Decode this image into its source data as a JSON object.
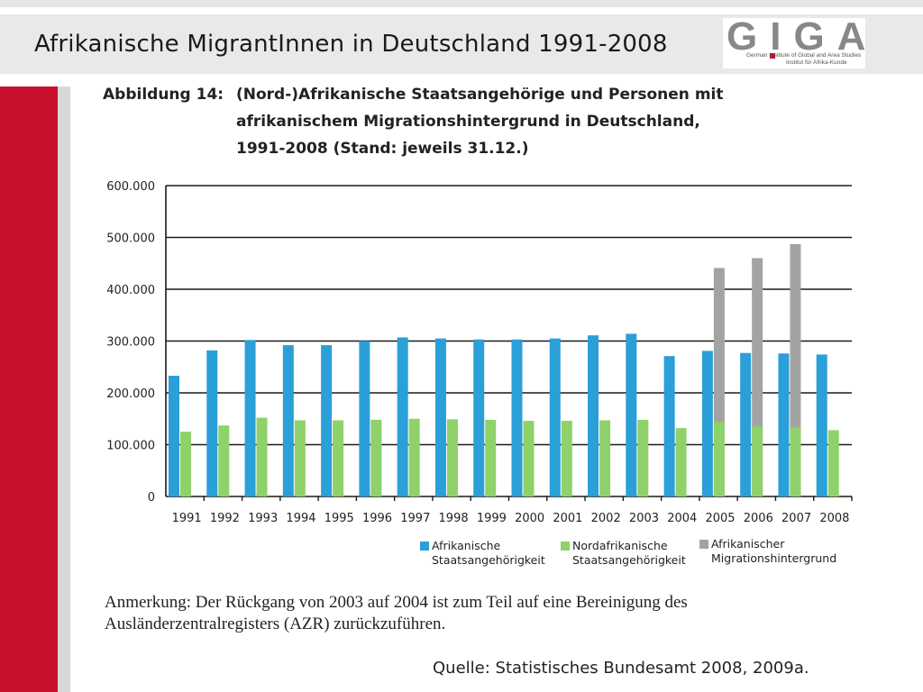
{
  "slide": {
    "title": "Afrikanische MigrantInnen in Deutschland 1991-2008"
  },
  "logo": {
    "letters": "GIGA",
    "line1": "German Institute of Global and Area Studies",
    "line2": "Institut für Afrika-Kunde",
    "accent_color": "#c8102e"
  },
  "figure": {
    "label": "Abbildung 14:",
    "title_lines": [
      "(Nord-)Afrikanische Staatsangehörige und Personen mit",
      "afrikanischem Migrationshintergrund in Deutschland,",
      "1991-2008 (Stand: jeweils 31.12.)"
    ],
    "note_lines": [
      "Anmerkung: Der Rückgang von 2003 auf 2004 ist zum Teil auf eine Bereinigung des",
      "Ausländerzentralregisters (AZR) zurückzuführen."
    ],
    "source": "Quelle: Statistisches Bundesamt 2008, 2009a."
  },
  "chart_data": {
    "type": "bar",
    "title": "",
    "xlabel": "",
    "ylabel": "",
    "categories": [
      "1991",
      "1992",
      "1993",
      "1994",
      "1995",
      "1996",
      "1997",
      "1998",
      "1999",
      "2000",
      "2001",
      "2002",
      "2003",
      "2004",
      "2005",
      "2006",
      "2007",
      "2008"
    ],
    "ylim": [
      0,
      600000
    ],
    "yticks": [
      0,
      100000,
      200000,
      300000,
      400000,
      500000,
      600000
    ],
    "ytick_labels": [
      "0",
      "100.000",
      "200.000",
      "300.000",
      "400.000",
      "500.000",
      "600.000"
    ],
    "grid": "horizontal",
    "legend_position": "bottom",
    "series": [
      {
        "name": "Afrikanische Staatsangehörigkeit",
        "legend_lines": [
          "Afrikanische",
          "Staatsangehörigkeit"
        ],
        "color": "#2a9fd8",
        "values": [
          233000,
          282000,
          302000,
          292000,
          292000,
          300000,
          307000,
          305000,
          303000,
          303000,
          305000,
          311000,
          314000,
          271000,
          281000,
          277000,
          276000,
          274000
        ]
      },
      {
        "name": "Nordafrikanische Staatsangehörigkeit",
        "legend_lines": [
          "Nordafrikanische",
          "Staatsangehörigkeit"
        ],
        "color": "#8fd16a",
        "values": [
          125000,
          137000,
          152000,
          147000,
          147000,
          148000,
          150000,
          149000,
          148000,
          146000,
          146000,
          147000,
          148000,
          132000,
          144000,
          135000,
          133000,
          128000
        ]
      },
      {
        "name": "Afrikanischer Migrationshintergrund",
        "legend_lines": [
          "Afrikanischer",
          "Migrationshintergrund"
        ],
        "color": "#a3a3a3",
        "values": [
          null,
          null,
          null,
          null,
          null,
          null,
          null,
          null,
          null,
          null,
          null,
          null,
          null,
          null,
          441000,
          460000,
          487000,
          null
        ]
      }
    ]
  }
}
